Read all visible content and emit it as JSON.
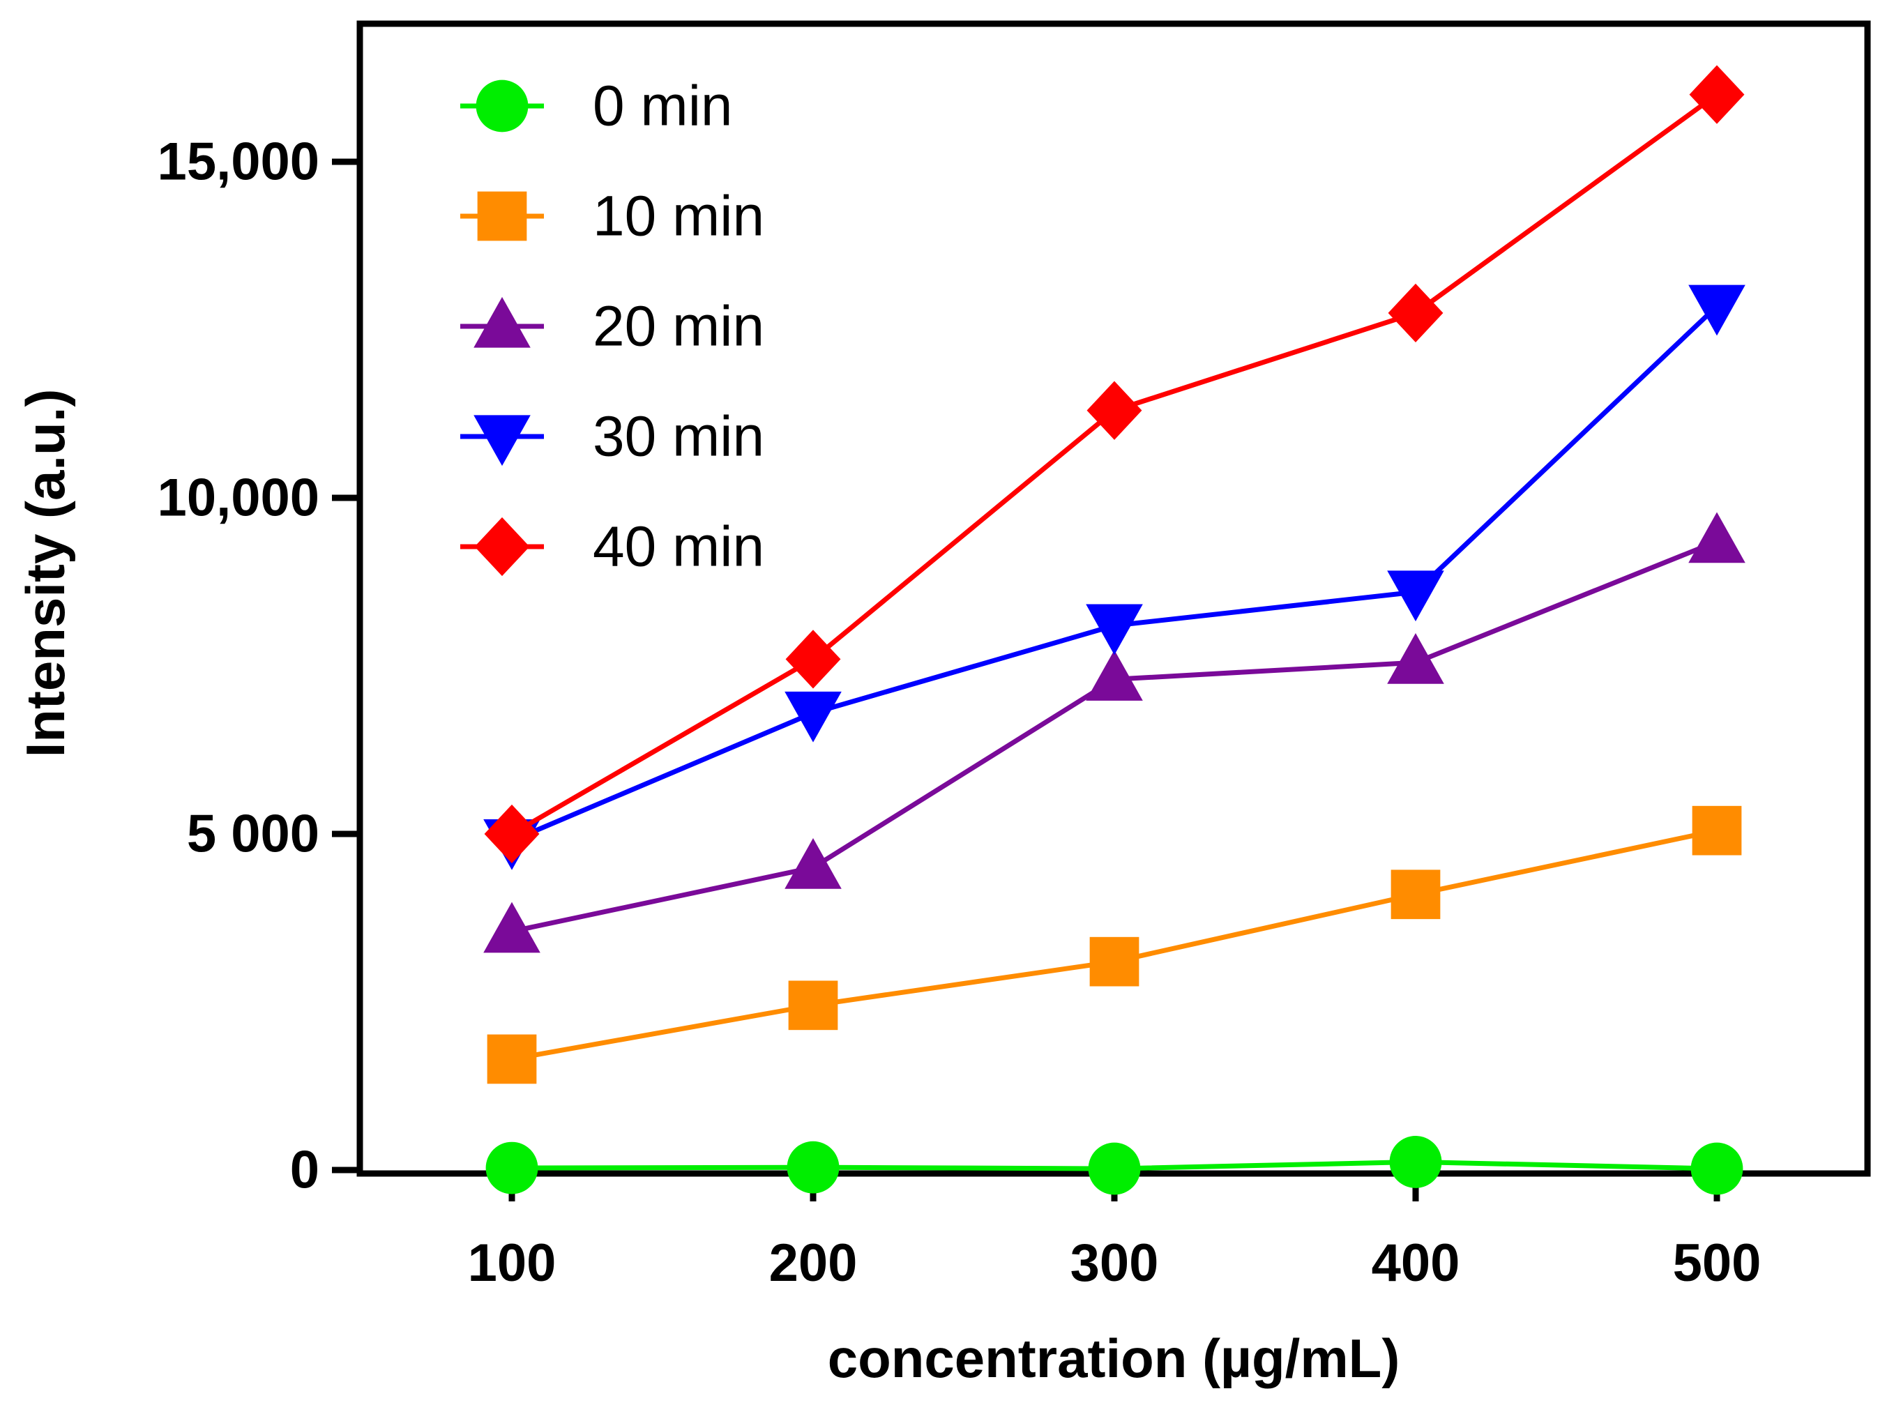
{
  "chart_data": {
    "type": "line",
    "title": "",
    "xlabel": "concentration (µg/mL)",
    "ylabel": "Intensity (a.u.)",
    "x": [
      100,
      200,
      300,
      400,
      500
    ],
    "xlim": [
      50,
      550
    ],
    "ylim": [
      0,
      16500
    ],
    "x_ticks": [
      100,
      200,
      300,
      400,
      500
    ],
    "x_tick_labels": [
      "100",
      "200",
      "300",
      "400",
      "500"
    ],
    "y_ticks": [
      0,
      5000,
      10000,
      15000
    ],
    "y_tick_labels": [
      "0",
      "5 000",
      "10,000",
      "15,000"
    ],
    "grid": false,
    "legend_position": "top-left",
    "series": [
      {
        "name": "0 min",
        "color": "#00ee00",
        "marker": "circle",
        "values": [
          30,
          40,
          20,
          120,
          20
        ]
      },
      {
        "name": "10 min",
        "color": "#ff8c00",
        "marker": "square",
        "values": [
          1650,
          2450,
          3100,
          4100,
          5050
        ]
      },
      {
        "name": "20 min",
        "color": "#7a0a99",
        "marker": "triangle-up",
        "values": [
          3550,
          4500,
          7300,
          7550,
          9350
        ]
      },
      {
        "name": "30 min",
        "color": "#0000ff",
        "marker": "triangle-down",
        "values": [
          4900,
          6800,
          8100,
          8600,
          12850
        ]
      },
      {
        "name": "40 min",
        "color": "#ff0000",
        "marker": "diamond",
        "values": [
          5000,
          7600,
          11300,
          12750,
          16000
        ]
      }
    ]
  }
}
